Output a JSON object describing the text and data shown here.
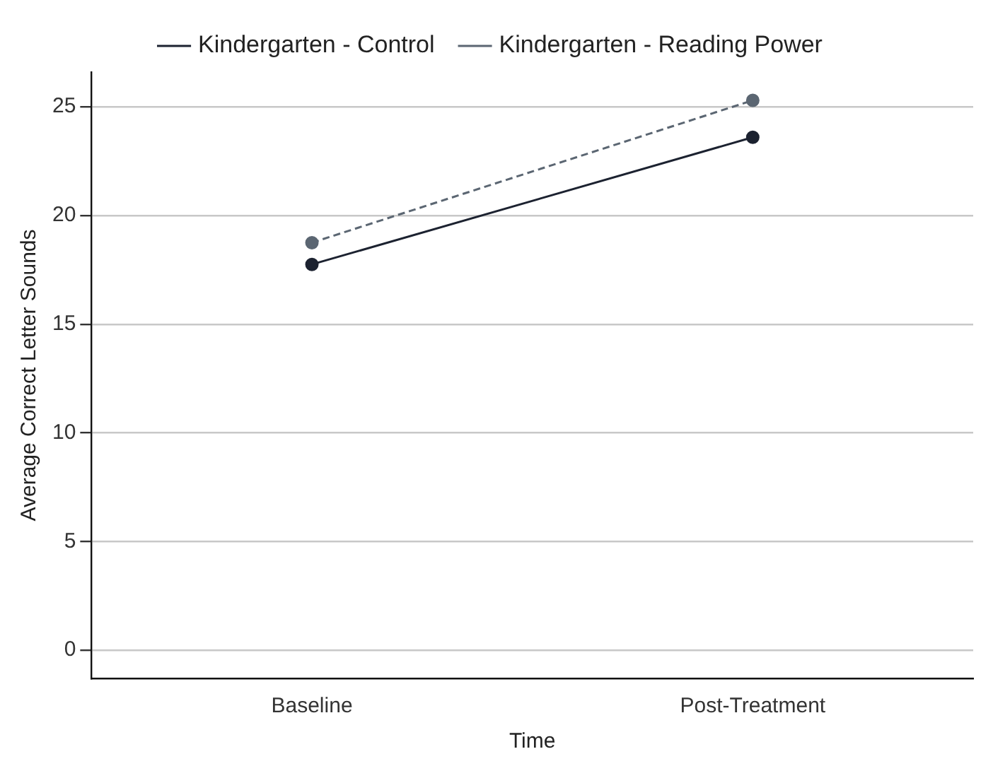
{
  "chart_data": {
    "type": "line",
    "xlabel": "Time",
    "ylabel": "Average Correct Letter Sounds",
    "categories": [
      "Baseline",
      "Post-Treatment"
    ],
    "series": [
      {
        "name": "Kindergarten - Control",
        "color": "#1c2230",
        "values": [
          17.75,
          23.6
        ],
        "line_style": "solid"
      },
      {
        "name": "Kindergarten - Reading Power",
        "color": "#5b6672",
        "values": [
          18.75,
          25.3
        ],
        "line_style": "dashed"
      }
    ],
    "ylim": [
      -1.3,
      26.6
    ],
    "yticks": [
      0,
      5,
      10,
      15,
      20,
      25
    ],
    "grid": "y",
    "legend": "top",
    "marker": "circle"
  }
}
